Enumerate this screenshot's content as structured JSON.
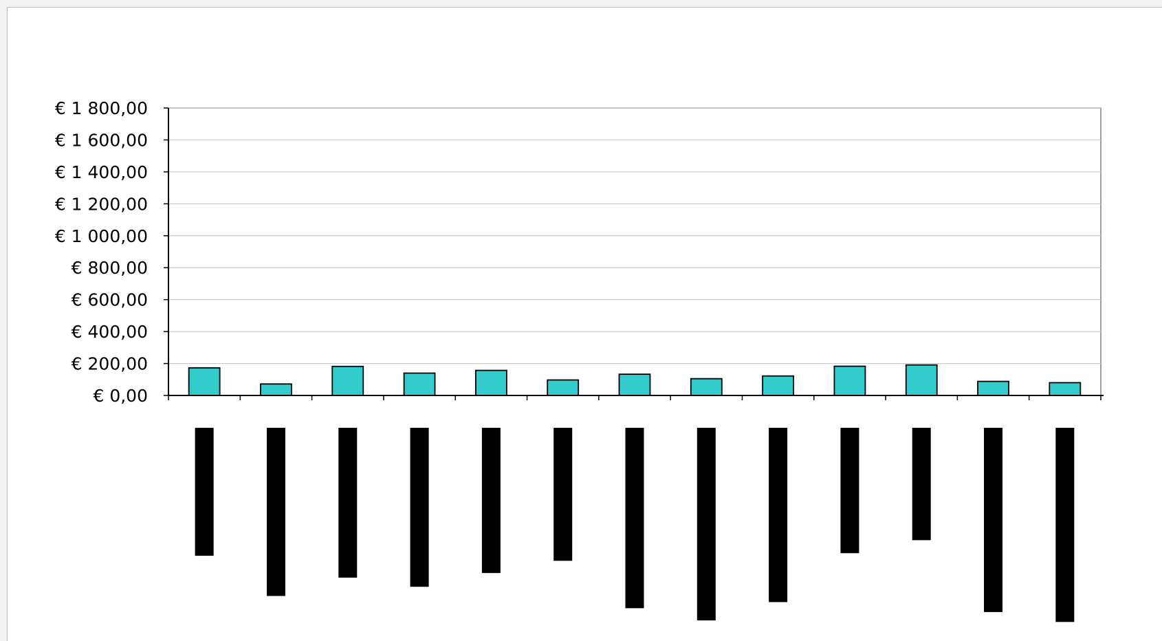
{
  "chart_data": {
    "type": "bar",
    "title": "",
    "xlabel": "",
    "ylabel": "",
    "ylim": [
      0,
      1800
    ],
    "yticks": [
      0,
      200,
      400,
      600,
      800,
      1000,
      1200,
      1400,
      1600,
      1800
    ],
    "ytick_labels": [
      "€ 0,00",
      "€ 200,00",
      "€ 400,00",
      "€ 600,00",
      "€ 800,00",
      "€ 1 000,00",
      "€ 1 200,00",
      "€ 1 400,00",
      "€ 1 600,00",
      "€ 1 800,00"
    ],
    "grid": true,
    "legend": "none",
    "category_count": 13,
    "series": [
      {
        "color": "#33cccc",
        "values": [
          173,
          72,
          182,
          140,
          157,
          97,
          133,
          105,
          122,
          183,
          191,
          88,
          80
        ]
      },
      {
        "color": "#000000",
        "values": [
          -837,
          -1100,
          -980,
          -1040,
          -950,
          -870,
          -1180,
          -1260,
          -1140,
          -820,
          -735,
          -1205,
          -1270
        ]
      }
    ]
  }
}
